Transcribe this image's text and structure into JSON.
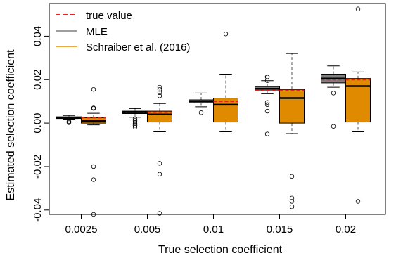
{
  "chart_data": {
    "type": "boxplot",
    "xlabel": "True selection coefficient",
    "ylabel": "Estimated selection coefficient",
    "ylim": [
      -0.042,
      0.055
    ],
    "y_ticks": [
      -0.04,
      -0.02,
      0.0,
      0.02,
      0.04
    ],
    "y_tick_labels": [
      "-0.04",
      "-0.02",
      "0.00",
      "0.02",
      "0.04"
    ],
    "categories": [
      "0.0025",
      "0.005",
      "0.01",
      "0.015",
      "0.02"
    ],
    "true_values": [
      0.0025,
      0.005,
      0.01,
      0.015,
      0.02
    ],
    "legend": {
      "position": "top-left",
      "entries": [
        {
          "label": "true value",
          "style": "dashed",
          "color": "#e8201e"
        },
        {
          "label": "MLE",
          "style": "solid",
          "color": "#7f7f7f"
        },
        {
          "label": "Schraiber et al. (2016)",
          "style": "solid",
          "color": "#e08a00"
        }
      ]
    },
    "colors": {
      "mle": "#7f7f7f",
      "schraiber": "#e08a00",
      "true": "#e8201e"
    },
    "series": [
      {
        "name": "MLE",
        "boxes": [
          {
            "whisker_low": 0.0018,
            "q1": 0.0021,
            "median": 0.0025,
            "q3": 0.0029,
            "whisker_high": 0.0035,
            "outliers": [
              0.0008,
              0.0002
            ]
          },
          {
            "whisker_low": 0.0027,
            "q1": 0.0044,
            "median": 0.005,
            "q3": 0.0055,
            "whisker_high": 0.0067,
            "outliers": [
              0.002,
              0.0012,
              0.0005,
              -0.0002,
              -0.001,
              -0.0018
            ]
          },
          {
            "whisker_low": 0.0075,
            "q1": 0.0093,
            "median": 0.01,
            "q3": 0.0107,
            "whisker_high": 0.0138,
            "outliers": [
              0.0048
            ]
          },
          {
            "whisker_low": 0.0135,
            "q1": 0.0148,
            "median": 0.0158,
            "q3": 0.0168,
            "whisker_high": 0.0195,
            "outliers": [
              0.0212,
              0.0212,
              0.0195,
              0.0095,
              0.0085,
              0.0055,
              -0.005
            ]
          },
          {
            "whisker_low": 0.0165,
            "q1": 0.0185,
            "median": 0.0205,
            "q3": 0.0225,
            "whisker_high": 0.0263,
            "outliers": [
              0.0138,
              -0.0015
            ]
          }
        ]
      },
      {
        "name": "Schraiber et al. (2016)",
        "boxes": [
          {
            "whisker_low": -0.0008,
            "q1": 0.0,
            "median": 0.001,
            "q3": 0.0025,
            "whisker_high": 0.0045,
            "outliers": [
              0.0155,
              0.007,
              0.0068,
              -0.02,
              -0.026,
              -0.042
            ]
          },
          {
            "whisker_low": -0.004,
            "q1": 0.0005,
            "median": 0.004,
            "q3": 0.0055,
            "whisker_high": 0.009,
            "outliers": [
              0.0165,
              0.0155,
              0.014,
              0.0125,
              -0.0185,
              -0.0235,
              -0.0415
            ]
          },
          {
            "whisker_low": -0.004,
            "q1": 0.0005,
            "median": 0.0085,
            "q3": 0.0115,
            "whisker_high": 0.0225,
            "outliers": [
              0.041
            ]
          },
          {
            "whisker_low": -0.0048,
            "q1": 0.0,
            "median": 0.0115,
            "q3": 0.0155,
            "whisker_high": 0.032,
            "outliers": [
              -0.0245,
              -0.0345,
              -0.036,
              -0.0385
            ]
          },
          {
            "whisker_low": -0.004,
            "q1": 0.0005,
            "median": 0.017,
            "q3": 0.0205,
            "whisker_high": 0.0235,
            "outliers": [
              0.0525,
              -0.036
            ]
          }
        ]
      }
    ]
  }
}
